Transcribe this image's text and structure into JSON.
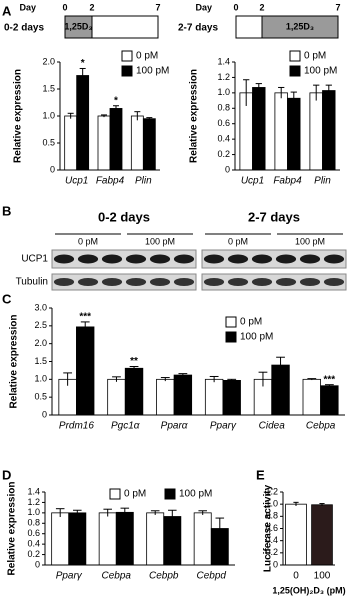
{
  "panels": [
    "A",
    "B",
    "C",
    "D",
    "E"
  ],
  "timelines": [
    {
      "label": "0-2 days",
      "day": "Day",
      "ticks": [
        "0",
        "2",
        "7"
      ],
      "box": "1,25D₃"
    },
    {
      "label": "2-7 days",
      "day": "Day",
      "ticks": [
        "0",
        "2",
        "7"
      ],
      "box": "1,25D₃"
    }
  ],
  "blot": {
    "groups": [
      "0-2 days",
      "2-7 days"
    ],
    "conditions": [
      "0 pM",
      "100 pM",
      "0 pM",
      "100 pM"
    ],
    "rows": [
      "UCP1",
      "Tubulin"
    ]
  },
  "chart_data": [
    {
      "type": "bar",
      "ylabel": "Relative expression",
      "categories": [
        "Ucp1",
        "Fabp4",
        "Plin"
      ],
      "ylim": [
        0,
        2
      ],
      "yticks": [
        0,
        0.5,
        {
          "value": 1,
          "label": "1.0"
        },
        1.5,
        {
          "value": 2,
          "label": "2.0"
        }
      ],
      "series": [
        {
          "name": "0 pM",
          "color": "#ffffff",
          "values": [
            1.0,
            1.0,
            1.0
          ],
          "errors": [
            0.05,
            0.02,
            0.08
          ]
        },
        {
          "name": "100 pM",
          "color": "#000000",
          "values": [
            1.75,
            1.14,
            0.95
          ],
          "errors": [
            0.13,
            0.05,
            0.02
          ],
          "significance": [
            "*",
            "*",
            null
          ]
        }
      ]
    },
    {
      "type": "bar",
      "ylabel": "Relative expression",
      "categories": [
        "Ucp1",
        "Fabp4",
        "Plin"
      ],
      "ylim": [
        0,
        1.4
      ],
      "yticks": [
        0,
        0.2,
        0.4,
        0.6,
        0.8,
        {
          "value": 1,
          "label": "1.0"
        },
        1.2,
        1.4
      ],
      "series": [
        {
          "name": "0 pM",
          "color": "#ffffff",
          "values": [
            1.0,
            1.0,
            1.0
          ],
          "errors": [
            0.17,
            0.07,
            0.1
          ]
        },
        {
          "name": "100 pM",
          "color": "#000000",
          "values": [
            1.07,
            0.93,
            1.03
          ],
          "errors": [
            0.05,
            0.08,
            0.07
          ]
        }
      ]
    },
    {
      "type": "bar",
      "ylabel": "Relative expression",
      "categories": [
        "Prdm16",
        "Pgc1α",
        "Pparα",
        "Pparγ",
        "Cidea",
        "Cebpa"
      ],
      "ylim": [
        0,
        3
      ],
      "yticks": [
        0,
        0.5,
        {
          "value": 1,
          "label": "1.0"
        },
        1.5,
        {
          "value": 2,
          "label": "2.0"
        },
        2.5,
        {
          "value": 3,
          "label": "3.0"
        }
      ],
      "series": [
        {
          "name": "0 pM",
          "color": "#ffffff",
          "values": [
            1.0,
            1.0,
            1.0,
            1.0,
            1.0,
            1.0
          ],
          "errors": [
            0.18,
            0.07,
            0.05,
            0.08,
            0.2,
            0.02
          ]
        },
        {
          "name": "100 pM",
          "color": "#000000",
          "values": [
            2.47,
            1.31,
            1.12,
            0.97,
            1.4,
            0.82
          ],
          "errors": [
            0.14,
            0.05,
            0.04,
            0.03,
            0.22,
            0.03
          ],
          "significance": [
            "***",
            "**",
            null,
            null,
            null,
            "***"
          ]
        }
      ]
    },
    {
      "type": "bar",
      "ylabel": "Relative expression",
      "categories": [
        "Pparγ",
        "Cebpa",
        "Cebpb",
        "Cebpd"
      ],
      "ylim": [
        0,
        1.4
      ],
      "yticks": [
        0,
        0.2,
        0.4,
        0.6,
        0.8,
        {
          "value": 1,
          "label": "1.0"
        },
        1.2,
        1.4
      ],
      "series": [
        {
          "name": "0 pM",
          "color": "#ffffff",
          "values": [
            1.0,
            1.0,
            1.0,
            1.0
          ],
          "errors": [
            0.08,
            0.07,
            0.04,
            0.04
          ]
        },
        {
          "name": "100 pM",
          "color": "#000000",
          "values": [
            1.0,
            1.01,
            0.93,
            0.7
          ],
          "errors": [
            0.05,
            0.08,
            0.12,
            0.2
          ]
        }
      ]
    },
    {
      "type": "bar",
      "ylabel": "Luciferase activity",
      "xlabel": "1,25(OH)₂D₃ (pM)",
      "categories": [
        "0",
        "100"
      ],
      "ylim": [
        0,
        1.2
      ],
      "yticks": [
        0,
        0.2,
        0.4,
        0.6,
        0.8,
        {
          "value": 1,
          "label": "1.0"
        },
        1.2
      ],
      "values": [
        1.0,
        0.99
      ],
      "errors": [
        0.03,
        0.02
      ],
      "colors": [
        "#ffffff",
        "#2b1b1b"
      ]
    }
  ]
}
